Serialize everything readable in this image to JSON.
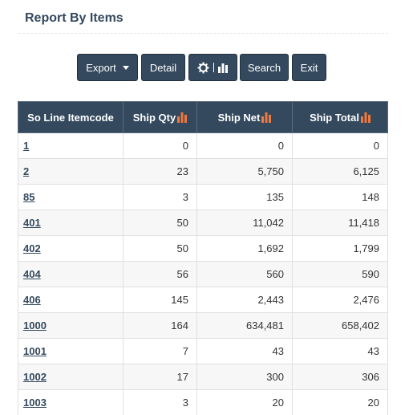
{
  "page": {
    "title": "Report By Items"
  },
  "toolbar": {
    "export_label": "Export",
    "detail_label": "Detail",
    "search_label": "Search",
    "exit_label": "Exit"
  },
  "colors": {
    "primary": "#34495e",
    "sort_icon": "#f0783c"
  },
  "table": {
    "columns": [
      "So Line Itemcode",
      "Ship Qty",
      "Ship Net",
      "Ship Total"
    ],
    "rows": [
      {
        "code": "1",
        "ship_qty": "0",
        "ship_net": "0",
        "ship_total": "0"
      },
      {
        "code": "2",
        "ship_qty": "23",
        "ship_net": "5,750",
        "ship_total": "6,125"
      },
      {
        "code": "85",
        "ship_qty": "3",
        "ship_net": "135",
        "ship_total": "148"
      },
      {
        "code": "401",
        "ship_qty": "50",
        "ship_net": "11,042",
        "ship_total": "11,418"
      },
      {
        "code": "402",
        "ship_qty": "50",
        "ship_net": "1,692",
        "ship_total": "1,799"
      },
      {
        "code": "404",
        "ship_qty": "56",
        "ship_net": "560",
        "ship_total": "590"
      },
      {
        "code": "406",
        "ship_qty": "145",
        "ship_net": "2,443",
        "ship_total": "2,476"
      },
      {
        "code": "1000",
        "ship_qty": "164",
        "ship_net": "634,481",
        "ship_total": "658,402"
      },
      {
        "code": "1001",
        "ship_qty": "7",
        "ship_net": "43",
        "ship_total": "43"
      },
      {
        "code": "1002",
        "ship_qty": "17",
        "ship_net": "300",
        "ship_total": "306"
      },
      {
        "code": "1003",
        "ship_qty": "3",
        "ship_net": "20",
        "ship_total": "20"
      }
    ]
  }
}
